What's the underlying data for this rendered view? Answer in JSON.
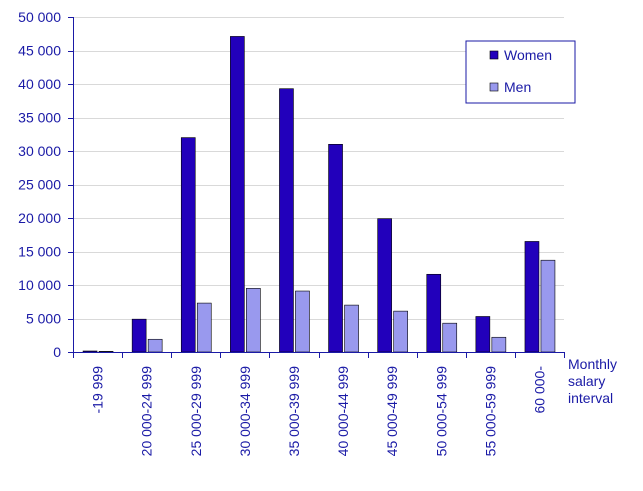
{
  "chart_data": {
    "type": "bar",
    "title": "",
    "categories": [
      "-19 999",
      "20 000-24 999",
      "25 000-29 999",
      "30 000-34 999",
      "35 000-39 999",
      "40 000-44 999",
      "45 000-49 999",
      "50 000-54 999",
      "55 000-59 999",
      "60 000-"
    ],
    "series": [
      {
        "name": "Women",
        "color": "#2200bb",
        "values": [
          150,
          4900,
          32000,
          47100,
          39300,
          31000,
          19900,
          11600,
          5300,
          16500
        ]
      },
      {
        "name": "Men",
        "color": "#9999ee",
        "values": [
          100,
          1900,
          7300,
          9500,
          9100,
          7000,
          6100,
          4300,
          2200,
          13700
        ]
      }
    ],
    "xlabel": [
      "Monthly",
      "salary",
      "interval"
    ],
    "ylabel": "",
    "ylim": [
      0,
      50000
    ],
    "yticks": [
      0,
      5000,
      10000,
      15000,
      20000,
      25000,
      30000,
      35000,
      40000,
      45000,
      50000
    ],
    "ytick_labels": [
      "0",
      "5 000",
      "10 000",
      "15 000",
      "20 000",
      "25 000",
      "30 000",
      "35 000",
      "40 000",
      "45 000",
      "50 000"
    ],
    "grid": true,
    "legend_position": "top-right",
    "colors": {
      "axis": "#1a1aa6",
      "grid": "#d9d9d9",
      "text": "#1a1aa6"
    }
  }
}
